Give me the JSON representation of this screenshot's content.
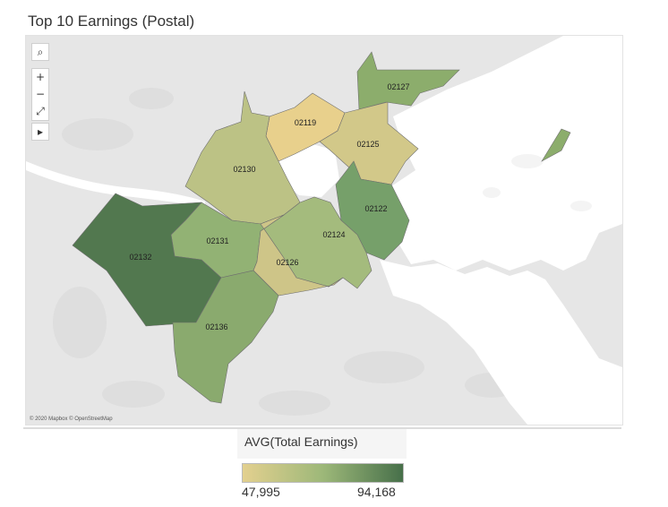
{
  "title": "Top 10 Earnings (Postal)",
  "attribution": "© 2020 Mapbox © OpenStreetMap",
  "map_tools": {
    "search_glyph": "⌕",
    "zoom_in_glyph": "+",
    "zoom_out_glyph": "−",
    "reset_glyph": "⤢",
    "pan_glyph": "▸"
  },
  "legend": {
    "title": "AVG(Total Earnings)",
    "min_label": "47,995",
    "max_label": "94,168",
    "color_min": "#e3d08f",
    "color_mid": "#9db879",
    "color_max": "#47704a"
  },
  "regions": [
    {
      "postal": "02127",
      "label": "02127",
      "color": "#8cad6c"
    },
    {
      "postal": "02119",
      "label": "02119",
      "color": "#e8d08c"
    },
    {
      "postal": "02125",
      "label": "02125",
      "color": "#d2c889"
    },
    {
      "postal": "02130",
      "label": "02130",
      "color": "#bcc285"
    },
    {
      "postal": "02122",
      "label": "02122",
      "color": "#76a06a"
    },
    {
      "postal": "02124",
      "label": "02124",
      "color": "#a4bb7d"
    },
    {
      "postal": "02131",
      "label": "02131",
      "color": "#92b274"
    },
    {
      "postal": "02126",
      "label": "02126",
      "color": "#cec588"
    },
    {
      "postal": "02132",
      "label": "02132",
      "color": "#52784f"
    },
    {
      "postal": "02136",
      "label": "02136",
      "color": "#8aaa6e"
    }
  ],
  "colors": {
    "land": "#e6e6e6",
    "water": "#ffffff",
    "region_border": "#6f6f6f"
  }
}
